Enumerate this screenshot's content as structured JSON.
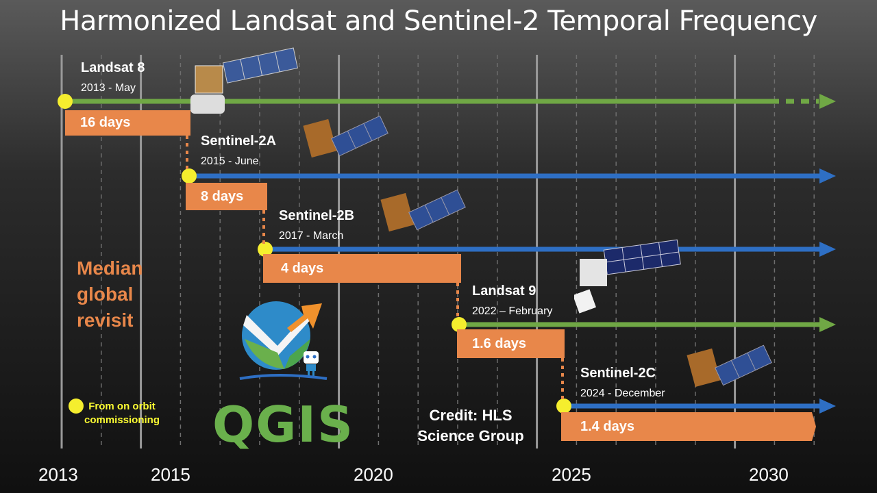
{
  "title": "Harmonized Landsat and Sentinel-2 Temporal Frequency",
  "colors": {
    "landsat": "#70a845",
    "sentinel": "#2e6fc4",
    "bar": "#e8874a",
    "dot": "#f5ee2e",
    "median": "#e8874a"
  },
  "years": [
    "2013",
    "2015",
    "2020",
    "2025",
    "2030"
  ],
  "satellites": [
    {
      "name": "Landsat 8",
      "date": "2013 - May",
      "revisit": "16 days",
      "family": "landsat"
    },
    {
      "name": "Sentinel-2A",
      "date": "2015 - June",
      "revisit": "8 days",
      "family": "sentinel"
    },
    {
      "name": "Sentinel-2B",
      "date": "2017 - March",
      "revisit": "4 days",
      "family": "sentinel"
    },
    {
      "name": "Landsat 9",
      "date": "2022 – February",
      "revisit": "1.6 days",
      "family": "landsat"
    },
    {
      "name": "Sentinel-2C",
      "date": "2024 - December",
      "revisit": "1.4 days",
      "family": "sentinel"
    }
  ],
  "median_label": [
    "Median",
    "global",
    "revisit"
  ],
  "legend": [
    "From on orbit",
    "commissioning"
  ],
  "credit": [
    "Credit: HLS",
    "Science Group"
  ],
  "logo_text": "QGIS",
  "icons": [
    "satellite-icon",
    "qgis-logo"
  ]
}
